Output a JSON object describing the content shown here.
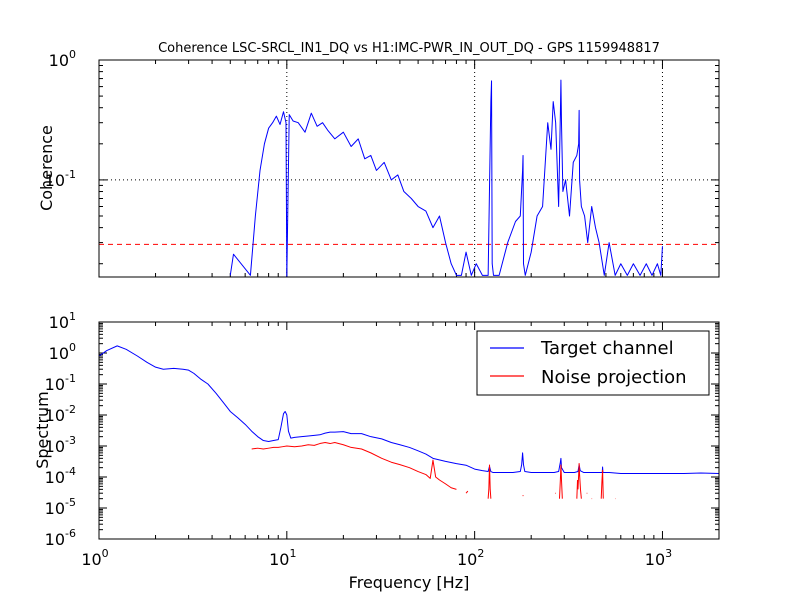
{
  "chart_data": [
    {
      "type": "line",
      "title": "Coherence LSC-SRCL_IN1_DQ vs H1:IMC-PWR_IN_OUT_DQ - GPS 1159948817",
      "xlabel": "",
      "ylabel": "Coherence",
      "xscale": "log",
      "yscale": "log",
      "xlim": [
        1,
        2000
      ],
      "ylim": [
        0.0155,
        1
      ],
      "grid": true,
      "yticks": [
        {
          "value": 1,
          "base": "10",
          "exp": "0"
        },
        {
          "value": 0.1,
          "base": "10",
          "exp": "-1"
        }
      ],
      "threshold": {
        "value": 0.029,
        "color": "#ff0000"
      },
      "series": [
        {
          "color": "#0000ff",
          "x": [
            5.0,
            5.2,
            6.4,
            6.8,
            7.2,
            7.6,
            8.0,
            8.4,
            8.8,
            9.2,
            9.6,
            9.9,
            10.0,
            10.3,
            10.8,
            11.5,
            12.5,
            13.5,
            14.5,
            15.5,
            16.5,
            18.0,
            20.0,
            22.0,
            24.0,
            26.0,
            28.0,
            30.0,
            33.0,
            36.0,
            39.0,
            42.0,
            46.0,
            50.0,
            55.0,
            60.0,
            65.0,
            70.0,
            75.0,
            80.0,
            85.0,
            90.0,
            96.0,
            102.0,
            110.0,
            118.0,
            122.0,
            123.0,
            124.0,
            126.0,
            135.0,
            150.0,
            165.0,
            175.0,
            180.0,
            181.0,
            182.0,
            186.0,
            200.0,
            215.0,
            230.0,
            245.0,
            255.0,
            262.0,
            270.0,
            280.0,
            286.0,
            288.0,
            290.0,
            295.0,
            305.0,
            320.0,
            335.0,
            350.0,
            358.0,
            360.0,
            362.0,
            370.0,
            385.0,
            400.0,
            420.0,
            440.0,
            460.0,
            490.0,
            520.0,
            560.0,
            600.0,
            650.0,
            700.0,
            760.0,
            820.0,
            880.0,
            940.0,
            980.0,
            1000.0
          ],
          "y": [
            0.016,
            0.024,
            0.016,
            0.05,
            0.12,
            0.2,
            0.27,
            0.3,
            0.34,
            0.29,
            0.37,
            0.3,
            0.015,
            0.35,
            0.31,
            0.3,
            0.25,
            0.36,
            0.28,
            0.3,
            0.26,
            0.22,
            0.25,
            0.19,
            0.22,
            0.15,
            0.16,
            0.12,
            0.14,
            0.1,
            0.11,
            0.08,
            0.07,
            0.06,
            0.055,
            0.04,
            0.05,
            0.03,
            0.02,
            0.016,
            0.016,
            0.025,
            0.016,
            0.02,
            0.016,
            0.016,
            0.45,
            0.67,
            0.02,
            0.016,
            0.016,
            0.03,
            0.045,
            0.05,
            0.12,
            0.16,
            0.02,
            0.016,
            0.025,
            0.05,
            0.06,
            0.3,
            0.18,
            0.45,
            0.3,
            0.06,
            0.35,
            0.68,
            0.3,
            0.08,
            0.1,
            0.05,
            0.14,
            0.16,
            0.2,
            0.38,
            0.1,
            0.06,
            0.05,
            0.03,
            0.06,
            0.04,
            0.03,
            0.016,
            0.03,
            0.016,
            0.02,
            0.016,
            0.02,
            0.016,
            0.02,
            0.016,
            0.02,
            0.016,
            0.028
          ]
        }
      ]
    },
    {
      "type": "line",
      "title": "",
      "xlabel": "Frequency [Hz]",
      "ylabel": "Spectrum",
      "xscale": "log",
      "yscale": "log",
      "xlim": [
        1,
        2000
      ],
      "ylim": [
        1e-06,
        10
      ],
      "grid": false,
      "xticks": [
        {
          "value": 1,
          "base": "10",
          "exp": "0"
        },
        {
          "value": 10,
          "base": "10",
          "exp": "1"
        },
        {
          "value": 100,
          "base": "10",
          "exp": "2"
        },
        {
          "value": 1000,
          "base": "10",
          "exp": "3"
        }
      ],
      "yticks": [
        {
          "value": 10,
          "base": "10",
          "exp": "1"
        },
        {
          "value": 1,
          "base": "10",
          "exp": "0"
        },
        {
          "value": 0.1,
          "base": "10",
          "exp": "-1"
        },
        {
          "value": 0.01,
          "base": "10",
          "exp": "-2"
        },
        {
          "value": 0.001,
          "base": "10",
          "exp": "-3"
        },
        {
          "value": 0.0001,
          "base": "10",
          "exp": "-4"
        },
        {
          "value": 1e-05,
          "base": "10",
          "exp": "-5"
        },
        {
          "value": 1e-06,
          "base": "10",
          "exp": "-6"
        }
      ],
      "legend": {
        "placement": "top-right"
      },
      "series": [
        {
          "name": "Target channel",
          "color": "#0000ff",
          "x": [
            1.0,
            1.1,
            1.25,
            1.4,
            1.6,
            1.8,
            2.0,
            2.2,
            2.5,
            2.8,
            3.0,
            3.2,
            3.5,
            3.8,
            4.2,
            4.6,
            5.0,
            5.5,
            6.0,
            6.5,
            7.0,
            7.5,
            8.0,
            8.5,
            9.0,
            9.3,
            9.6,
            9.8,
            10.0,
            10.2,
            10.5,
            11.0,
            12.0,
            13.0,
            14.0,
            15.0,
            16.0,
            17.0,
            18.0,
            20.0,
            22.0,
            25.0,
            28.0,
            32.0,
            36.0,
            40.0,
            45.0,
            50.0,
            55.0,
            60.0,
            70.0,
            80.0,
            90.0,
            100.0,
            110.0,
            118.0,
            120.0,
            122.0,
            125.0,
            130.0,
            145.0,
            160.0,
            175.0,
            178.0,
            180.0,
            182.0,
            185.0,
            200.0,
            220.0,
            245.0,
            265.0,
            280.0,
            286.0,
            288.0,
            290.0,
            300.0,
            320.0,
            340.0,
            355.0,
            360.0,
            365.0,
            380.0,
            420.0,
            460.0,
            478.0,
            480.0,
            482.0,
            520.0,
            600.0,
            800.0,
            1000.0,
            1300.0,
            1600.0,
            2000.0
          ],
          "y": [
            0.8,
            1.2,
            1.7,
            1.3,
            0.8,
            0.5,
            0.35,
            0.3,
            0.32,
            0.3,
            0.28,
            0.22,
            0.14,
            0.1,
            0.05,
            0.025,
            0.013,
            0.008,
            0.005,
            0.003,
            0.002,
            0.0015,
            0.0014,
            0.0015,
            0.0016,
            0.004,
            0.011,
            0.013,
            0.01,
            0.003,
            0.0018,
            0.0019,
            0.002,
            0.0021,
            0.0022,
            0.0023,
            0.0026,
            0.0028,
            0.0028,
            0.0029,
            0.0025,
            0.0025,
            0.002,
            0.0017,
            0.0013,
            0.0011,
            0.0009,
            0.0007,
            0.00055,
            0.0004,
            0.00032,
            0.00027,
            0.00024,
            0.00018,
            0.00016,
            0.00015,
            0.00022,
            0.00015,
            0.00014,
            0.00014,
            0.00014,
            0.00014,
            0.00015,
            0.00025,
            0.0006,
            0.00025,
            0.00015,
            0.00014,
            0.00014,
            0.00014,
            0.00014,
            0.00015,
            0.0003,
            0.0004,
            0.0002,
            0.00014,
            0.00014,
            0.00014,
            0.00015,
            0.00025,
            0.00016,
            0.00014,
            0.00014,
            0.00014,
            0.00014,
            0.00021,
            0.00014,
            0.00014,
            0.00013,
            0.00013,
            0.00013,
            0.00013,
            0.000135,
            0.00013
          ]
        },
        {
          "name": "Noise projection",
          "color": "#ff0000",
          "x": [
            6.5,
            7.0,
            7.5,
            8.0,
            8.5,
            9.0,
            9.5,
            10.0,
            11.0,
            12.0,
            13.0,
            14.0,
            15.0,
            16.0,
            17.0,
            18.0,
            20.0,
            22.0,
            25.0,
            28.0,
            32.0,
            36.0,
            40.0,
            45.0,
            50.0,
            55.0,
            58.0,
            60.0,
            62.0,
            65.0,
            70.0,
            75.0,
            80.0
          ],
          "y": [
            0.0008,
            0.00085,
            0.0008,
            0.00085,
            0.0009,
            0.0009,
            0.00095,
            0.001,
            0.00095,
            0.001,
            0.0011,
            0.00105,
            0.0012,
            0.0013,
            0.0012,
            0.0013,
            0.0011,
            0.0009,
            0.0008,
            0.0006,
            0.0004,
            0.0003,
            0.00025,
            0.0002,
            0.00015,
            0.00012,
            9e-05,
            0.00035,
            0.0001,
            8e-05,
            6e-05,
            4.5e-05,
            4e-05
          ],
          "fragments": [
            {
              "x": [
                90,
                92
              ],
              "y": [
                3e-05,
                3.5e-05
              ]
            },
            {
              "x": [
                118,
                119,
                120,
                121,
                122
              ],
              "y": [
                2e-05,
                4e-05,
                0.00025,
                4e-05,
                2e-05
              ]
            },
            {
              "x": [
                180,
                182
              ],
              "y": [
                2.5e-05,
                2.5e-05
              ]
            },
            {
              "x": [
                268,
                270
              ],
              "y": [
                3e-05,
                3e-05
              ]
            },
            {
              "x": [
                283,
                286,
                288,
                290,
                293
              ],
              "y": [
                2e-05,
                8e-05,
                0.00025,
                8e-05,
                2e-05
              ]
            },
            {
              "x": [
                350,
                353,
                355,
                358,
                360,
                362,
                366,
                370
              ],
              "y": [
                2e-05,
                8e-05,
                4e-05,
                0.00012,
                0.00028,
                0.00012,
                4e-05,
                2e-05
              ]
            },
            {
              "x": [
                395,
                398
              ],
              "y": [
                3e-05,
                3e-05
              ]
            },
            {
              "x": [
                420,
                422
              ],
              "y": [
                2e-05,
                2e-05
              ]
            },
            {
              "x": [
                472,
                476,
                480,
                484
              ],
              "y": [
                2e-05,
                7e-05,
                0.00017,
                2e-05
              ]
            },
            {
              "x": [
                560,
                562
              ],
              "y": [
                2e-05,
                2e-05
              ]
            }
          ]
        }
      ]
    }
  ]
}
